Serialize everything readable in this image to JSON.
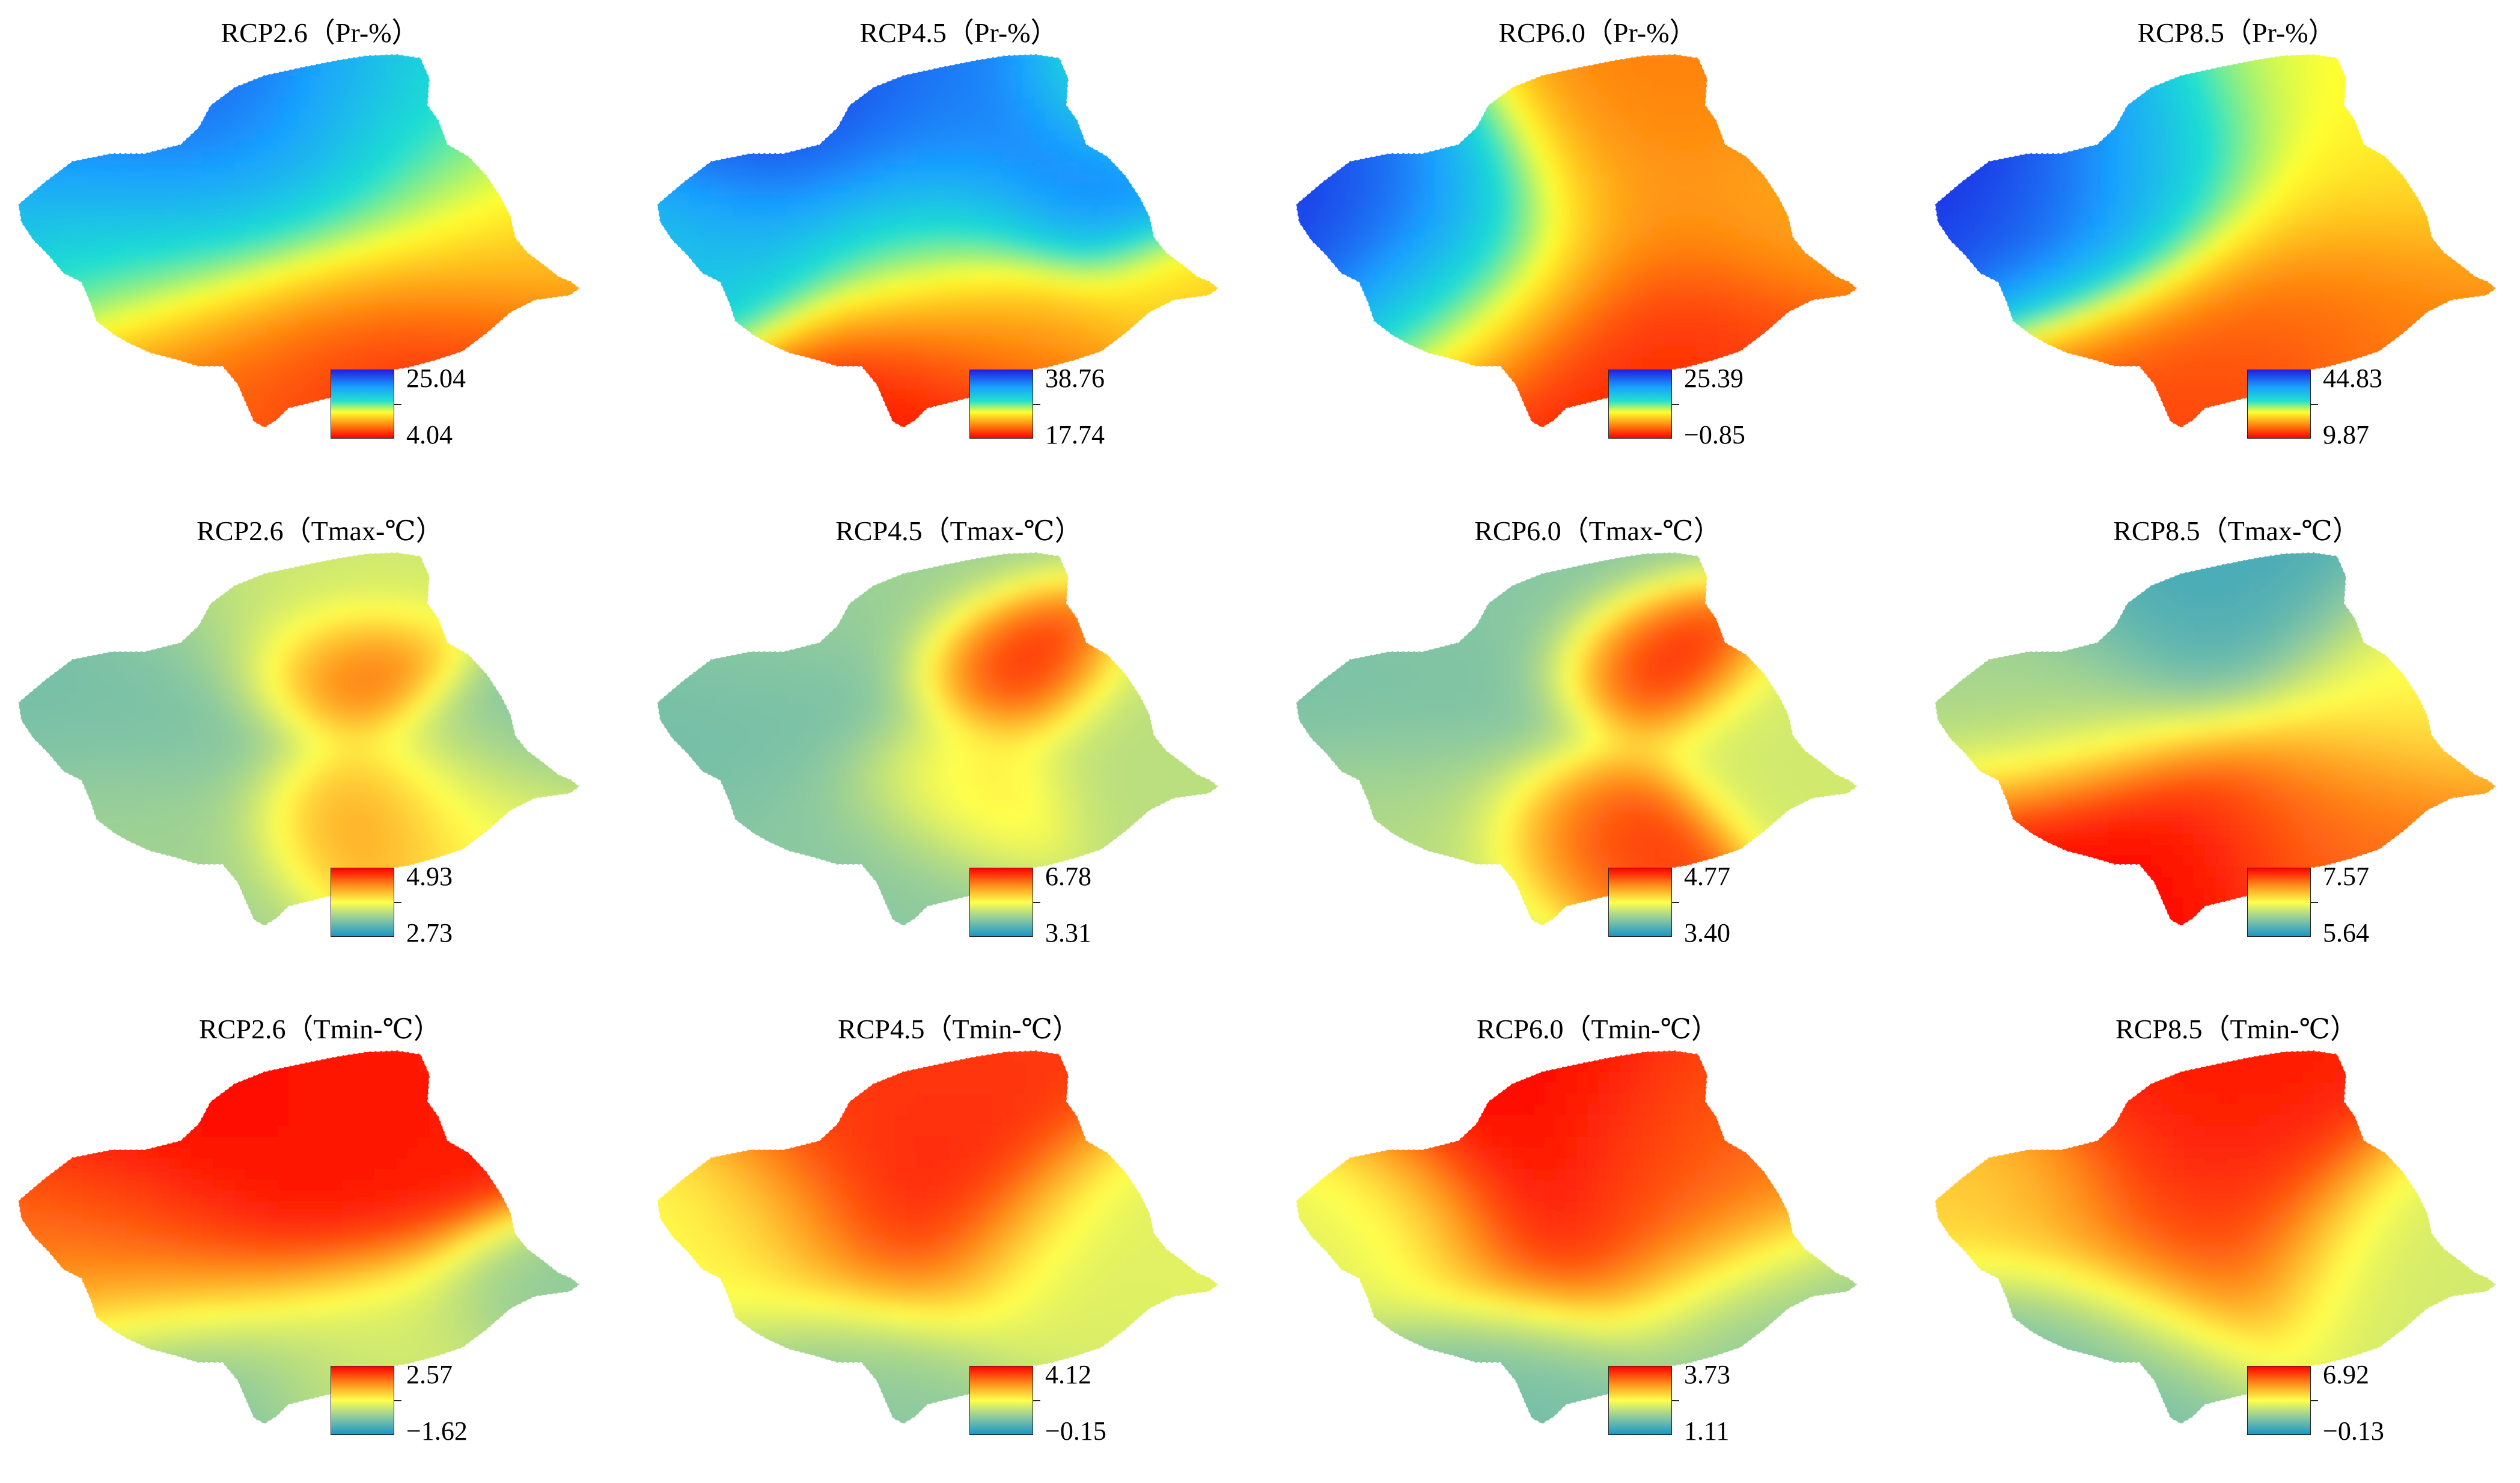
{
  "panels": [
    {
      "title": "RCP2.6（Pr-%）",
      "legend_max": "25.04",
      "legend_min": "4.04",
      "variable": "Pr",
      "palette": "pr",
      "field": [
        [
          0.18,
          0.26,
          0.45,
          0.95
        ],
        [
          0.28,
          0.3,
          0.4,
          0.88
        ],
        [
          0.08,
          0.44,
          0.4,
          0.55
        ],
        [
          0.18,
          0.55,
          0.3,
          0.4
        ],
        [
          0.68,
          0.32,
          0.42,
          0.55
        ],
        [
          0.9,
          0.5,
          0.35,
          0.25
        ],
        [
          0.45,
          0.72,
          0.4,
          0.08
        ],
        [
          0.75,
          0.82,
          0.35,
          0.05
        ],
        [
          0.3,
          0.9,
          0.3,
          0.15
        ]
      ]
    },
    {
      "title": "RCP4.5（Pr-%）",
      "legend_max": "38.76",
      "legend_min": "17.74",
      "variable": "Pr",
      "palette": "pr",
      "field": [
        [
          0.22,
          0.26,
          0.3,
          0.95
        ],
        [
          0.5,
          0.3,
          0.3,
          0.8
        ],
        [
          0.78,
          0.36,
          0.25,
          0.82
        ],
        [
          0.88,
          0.14,
          0.2,
          0.5
        ],
        [
          0.1,
          0.5,
          0.3,
          0.62
        ],
        [
          0.45,
          0.5,
          0.25,
          0.45
        ],
        [
          0.58,
          0.7,
          0.3,
          0.25
        ],
        [
          0.45,
          0.92,
          0.3,
          0.02
        ],
        [
          0.95,
          0.6,
          0.2,
          0.3
        ]
      ]
    },
    {
      "title": "RCP6.0（Pr-%）",
      "legend_max": "25.39",
      "legend_min": "−0.85",
      "variable": "Pr",
      "palette": "pr",
      "field": [
        [
          0.06,
          0.44,
          0.3,
          1.0
        ],
        [
          0.22,
          0.4,
          0.3,
          0.85
        ],
        [
          0.3,
          0.62,
          0.3,
          0.55
        ],
        [
          0.55,
          0.35,
          0.35,
          0.2
        ],
        [
          0.88,
          0.4,
          0.35,
          0.25
        ],
        [
          0.7,
          0.12,
          0.25,
          0.18
        ],
        [
          0.55,
          0.78,
          0.35,
          0.02
        ],
        [
          0.75,
          0.85,
          0.35,
          0.1
        ]
      ]
    },
    {
      "title": "RCP8.5（Pr-%）",
      "legend_max": "44.83",
      "legend_min": "9.87",
      "variable": "Pr",
      "palette": "pr",
      "field": [
        [
          0.12,
          0.32,
          0.35,
          1.0
        ],
        [
          0.25,
          0.45,
          0.3,
          0.85
        ],
        [
          0.38,
          0.3,
          0.25,
          0.7
        ],
        [
          0.6,
          0.3,
          0.35,
          0.4
        ],
        [
          0.88,
          0.35,
          0.35,
          0.35
        ],
        [
          0.65,
          0.65,
          0.4,
          0.12
        ],
        [
          0.45,
          0.85,
          0.35,
          0.1
        ],
        [
          0.9,
          0.72,
          0.35,
          0.2
        ]
      ]
    },
    {
      "title": "RCP2.6（Tmax-℃）",
      "legend_max": "4.93",
      "legend_min": "2.73",
      "variable": "Tmax",
      "palette": "tmp",
      "field": [
        [
          0.58,
          0.32,
          0.18,
          1.0
        ],
        [
          0.6,
          0.7,
          0.2,
          0.75
        ],
        [
          0.25,
          0.4,
          0.35,
          0.2
        ],
        [
          0.25,
          0.75,
          0.3,
          0.3
        ],
        [
          0.88,
          0.5,
          0.22,
          0.2
        ],
        [
          0.5,
          0.15,
          0.3,
          0.4
        ],
        [
          0.8,
          0.65,
          0.25,
          0.5
        ]
      ]
    },
    {
      "title": "RCP4.5（Tmax-℃）",
      "legend_max": "6.78",
      "legend_min": "3.31",
      "variable": "Tmax",
      "palette": "tmp",
      "field": [
        [
          0.62,
          0.32,
          0.18,
          1.0
        ],
        [
          0.52,
          0.62,
          0.2,
          0.6
        ],
        [
          0.25,
          0.4,
          0.35,
          0.2
        ],
        [
          0.35,
          0.75,
          0.25,
          0.25
        ],
        [
          0.88,
          0.5,
          0.25,
          0.35
        ],
        [
          0.3,
          0.12,
          0.3,
          0.3
        ]
      ]
    },
    {
      "title": "RCP6.0（Tmax-℃）",
      "legend_max": "4.77",
      "legend_min": "3.40",
      "variable": "Tmax",
      "palette": "tmp",
      "field": [
        [
          0.62,
          0.32,
          0.18,
          1.0
        ],
        [
          0.52,
          0.72,
          0.2,
          0.95
        ],
        [
          0.25,
          0.4,
          0.35,
          0.2
        ],
        [
          0.25,
          0.7,
          0.3,
          0.35
        ],
        [
          0.85,
          0.5,
          0.22,
          0.4
        ],
        [
          0.3,
          0.15,
          0.3,
          0.25
        ]
      ]
    },
    {
      "title": "RCP8.5（Tmax-℃）",
      "legend_max": "7.57",
      "legend_min": "5.64",
      "variable": "Tmax",
      "palette": "tmp",
      "field": [
        [
          0.5,
          0.18,
          0.3,
          0.1
        ],
        [
          0.2,
          0.4,
          0.3,
          0.3
        ],
        [
          0.85,
          0.4,
          0.3,
          0.5
        ],
        [
          0.35,
          0.8,
          0.35,
          1.0
        ],
        [
          0.75,
          0.72,
          0.35,
          0.8
        ]
      ]
    },
    {
      "title": "RCP2.6（Tmin-℃）",
      "legend_max": "2.57",
      "legend_min": "−1.62",
      "variable": "Tmin",
      "palette": "tmp",
      "field": [
        [
          0.35,
          0.38,
          0.35,
          1.0
        ],
        [
          0.6,
          0.3,
          0.3,
          0.95
        ],
        [
          0.2,
          0.55,
          0.3,
          0.75
        ],
        [
          0.3,
          0.85,
          0.3,
          0.2
        ],
        [
          0.65,
          0.8,
          0.3,
          0.4
        ],
        [
          0.92,
          0.65,
          0.2,
          0.25
        ]
      ]
    },
    {
      "title": "RCP4.5（Tmin-℃）",
      "legend_max": "4.12",
      "legend_min": "−0.15",
      "variable": "Tmin",
      "palette": "tmp",
      "field": [
        [
          0.45,
          0.45,
          0.3,
          1.0
        ],
        [
          0.4,
          0.2,
          0.3,
          0.9
        ],
        [
          0.15,
          0.5,
          0.3,
          0.5
        ],
        [
          0.35,
          0.88,
          0.3,
          0.25
        ],
        [
          0.75,
          0.6,
          0.3,
          0.4
        ],
        [
          0.92,
          0.6,
          0.25,
          0.45
        ]
      ]
    },
    {
      "title": "RCP6.0（Tmin-℃）",
      "legend_max": "3.73",
      "legend_min": "1.11",
      "variable": "Tmin",
      "palette": "tmp",
      "field": [
        [
          0.45,
          0.4,
          0.35,
          1.0
        ],
        [
          0.15,
          0.5,
          0.25,
          0.4
        ],
        [
          0.35,
          0.9,
          0.3,
          0.2
        ],
        [
          0.85,
          0.7,
          0.3,
          0.25
        ],
        [
          0.7,
          0.4,
          0.3,
          0.8
        ]
      ]
    },
    {
      "title": "RCP8.5（Tmin-℃）",
      "legend_max": "6.92",
      "legend_min": "−0.13",
      "variable": "Tmin",
      "palette": "tmp",
      "field": [
        [
          0.45,
          0.25,
          0.3,
          0.95
        ],
        [
          0.45,
          0.5,
          0.3,
          0.9
        ],
        [
          0.25,
          0.78,
          0.3,
          0.2
        ],
        [
          0.85,
          0.6,
          0.3,
          0.4
        ],
        [
          0.15,
          0.4,
          0.25,
          0.6
        ]
      ]
    }
  ]
}
